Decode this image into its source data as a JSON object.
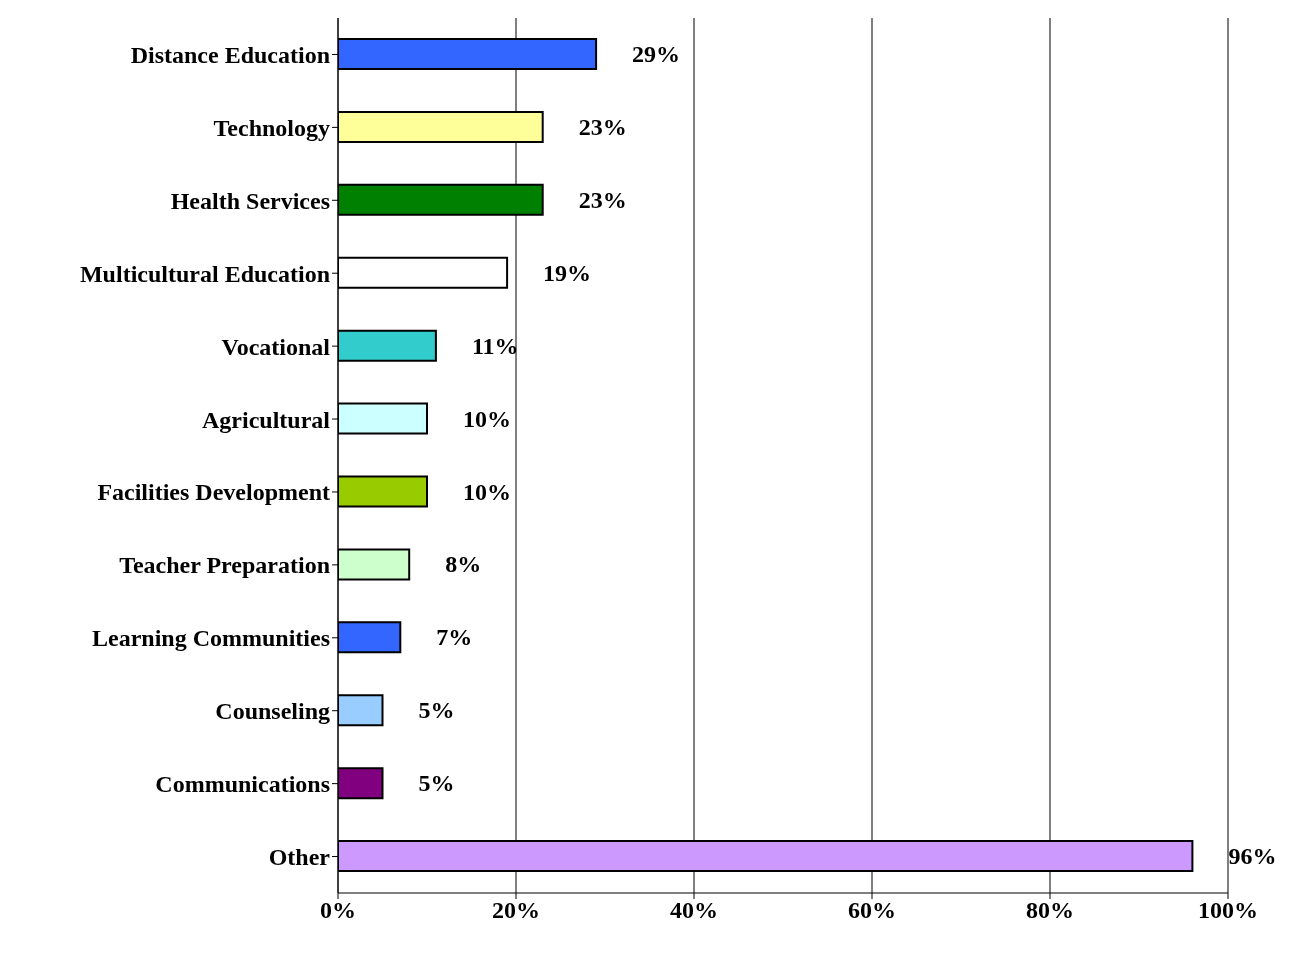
{
  "chart_data": {
    "type": "bar",
    "orientation": "horizontal",
    "categories": [
      "Distance Education",
      "Technology",
      "Health Services",
      "Multicultural Education",
      "Vocational",
      "Agricultural",
      "Facilities Development",
      "Teacher Preparation",
      "Learning Communities",
      "Counseling",
      "Communications",
      "Other"
    ],
    "values": [
      29,
      23,
      23,
      19,
      11,
      10,
      10,
      8,
      7,
      5,
      5,
      96
    ],
    "value_labels": [
      "29%",
      "23%",
      "23%",
      "19%",
      "11%",
      "10%",
      "10%",
      "8%",
      "7%",
      "5%",
      "5%",
      "96%"
    ],
    "colors": [
      "#3366ff",
      "#ffff99",
      "#008000",
      "#ffffff",
      "#33cccc",
      "#ccffff",
      "#99cc00",
      "#ccffcc",
      "#3366ff",
      "#99ccff",
      "#800080",
      "#cc99ff"
    ],
    "xlim": [
      0,
      100
    ],
    "xticks": [
      {
        "value": 0,
        "label": "0%"
      },
      {
        "value": 20,
        "label": "20%"
      },
      {
        "value": 40,
        "label": "40%"
      },
      {
        "value": 60,
        "label": "60%"
      },
      {
        "value": 80,
        "label": "80%"
      },
      {
        "value": 100,
        "label": "100%"
      }
    ],
    "grid": "x"
  }
}
